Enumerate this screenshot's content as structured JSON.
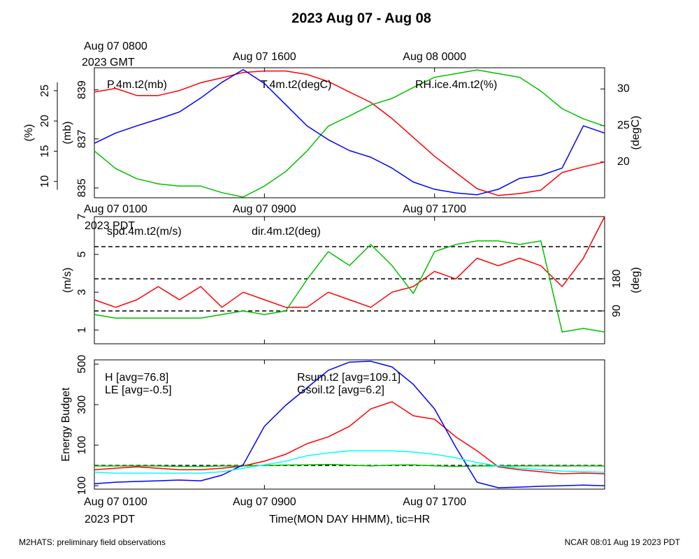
{
  "title": "2023 Aug 07 - Aug 08",
  "x_label": "Time(MON DAY HHMM), tic=HR",
  "footer_left": "M2HATS: preliminary field observations",
  "footer_right": "NCAR 08:01 Aug 19 2023 PDT",
  "chart_data": [
    {
      "type": "line",
      "x": [
        0,
        1,
        2,
        3,
        4,
        5,
        6,
        7,
        8,
        9,
        10,
        11,
        12,
        13,
        14,
        15,
        16,
        17,
        18,
        19,
        20,
        21,
        22,
        23,
        24
      ],
      "xlim": [
        0,
        24
      ],
      "xticks": [
        {
          "value": 0,
          "label": "Aug 07 0800"
        },
        {
          "value": 8,
          "label": "Aug 07 1600"
        },
        {
          "value": 16,
          "label": "Aug 08 0000"
        }
      ],
      "xtick_note": "2023 GMT",
      "xtick_labels_at": "top",
      "ylabel": "(mb)",
      "ylim": [
        834.6,
        839.9
      ],
      "yticks": [
        835,
        837,
        839
      ],
      "y2label": "(degC)",
      "y2lim": [
        15.1,
        32.9
      ],
      "y2ticks": [
        20,
        25,
        30
      ],
      "y3label": "(%)",
      "y3lim": [
        7.3,
        28.8
      ],
      "y3ticks": [
        10,
        15,
        20,
        25
      ],
      "series": [
        {
          "name": "P.4m.t2(mb)",
          "color": "#ff0000",
          "axis": "y",
          "values": [
            838.91,
            839.06,
            838.77,
            838.77,
            838.97,
            839.29,
            839.49,
            839.71,
            839.77,
            839.77,
            839.63,
            839.34,
            838.91,
            838.49,
            837.83,
            837.06,
            836.29,
            835.63,
            834.97,
            834.69,
            834.77,
            834.91,
            835.63,
            835.86,
            836.06
          ]
        },
        {
          "name": "T.4m.t2(degC)",
          "color": "#00c000",
          "axis": "y2",
          "values": [
            21.5,
            19.1,
            17.7,
            17.0,
            16.7,
            16.7,
            15.8,
            15.2,
            16.7,
            18.7,
            21.5,
            24.9,
            26.3,
            27.8,
            28.7,
            30.2,
            31.6,
            32.1,
            32.6,
            32.1,
            31.6,
            29.7,
            27.3,
            25.9,
            24.9
          ]
        },
        {
          "name": "RH.ice.4m.t2(%)",
          "color": "#0000ff",
          "axis": "y3",
          "values": [
            16.3,
            18.0,
            19.2,
            20.3,
            21.5,
            23.8,
            26.4,
            28.5,
            26.2,
            22.7,
            19.2,
            16.9,
            15.1,
            14.0,
            12.2,
            9.9,
            8.7,
            8.1,
            7.8,
            8.7,
            10.5,
            11.0,
            12.2,
            19.2,
            18.0
          ]
        }
      ]
    },
    {
      "type": "line",
      "x": [
        0,
        1,
        2,
        3,
        4,
        5,
        6,
        7,
        8,
        9,
        10,
        11,
        12,
        13,
        14,
        15,
        16,
        17,
        18,
        19,
        20,
        21,
        22,
        23,
        24
      ],
      "xlim": [
        0,
        24
      ],
      "xticks": [
        {
          "value": 0,
          "label": "Aug 07 0100"
        },
        {
          "value": 8,
          "label": "Aug 07 0900"
        },
        {
          "value": 16,
          "label": "Aug 07 1700"
        }
      ],
      "xtick_note": "2023 PDT",
      "xtick_labels_at": "top",
      "ylabel": "(m/s)",
      "ylim": [
        0.27,
        7.0
      ],
      "yticks": [
        1,
        3,
        5,
        7
      ],
      "y2label": "(deg)",
      "y2lim": [
        -2,
        354
      ],
      "y2ticks": [
        90,
        180
      ],
      "hlines": [
        90,
        180,
        270
      ],
      "hlines_axis": "y2",
      "series": [
        {
          "name": "spd.4m.t2(m/s)",
          "color": "#ff0000",
          "axis": "y",
          "values": [
            2.6,
            2.2,
            2.6,
            3.3,
            2.6,
            3.3,
            2.2,
            3.0,
            2.6,
            2.2,
            2.2,
            3.0,
            2.6,
            2.2,
            3.0,
            3.3,
            4.1,
            3.7,
            4.8,
            4.4,
            4.8,
            4.4,
            3.3,
            4.8,
            7.0
          ]
        },
        {
          "name": "dir.4m.t2(deg)",
          "color": "#00c000",
          "axis": "y2",
          "values": [
            80,
            70,
            70,
            70,
            70,
            70,
            80,
            90,
            80,
            90,
            178,
            256,
            217,
            276,
            217,
            139,
            256,
            276,
            286,
            286,
            276,
            286,
            31,
            41,
            31
          ]
        }
      ]
    },
    {
      "type": "line",
      "x": [
        0,
        1,
        2,
        3,
        4,
        5,
        6,
        7,
        8,
        9,
        10,
        11,
        12,
        13,
        14,
        15,
        16,
        17,
        18,
        19,
        20,
        21,
        22,
        23,
        24
      ],
      "xlim": [
        0,
        24
      ],
      "xticks": [
        {
          "value": 0,
          "label": "Aug 07 0100"
        },
        {
          "value": 8,
          "label": "Aug 07 0900"
        },
        {
          "value": 16,
          "label": "Aug 07 1700"
        }
      ],
      "xtick_note": "2023 PDT",
      "xtick_labels_at": "bottom",
      "ylabel": "Energy Budget",
      "ylim": [
        -117,
        521
      ],
      "yticks": [
        {
          "value": -100,
          "label": "100"
        },
        100,
        300,
        500
      ],
      "hlines": [
        0
      ],
      "hlines_axis": "y",
      "series": [
        {
          "name": "H [avg=76.8]",
          "color": "#ff0000",
          "axis": "y",
          "values": [
            -21,
            -14,
            -7,
            -14,
            -21,
            -21,
            -14,
            -3,
            21,
            55,
            107,
            141,
            193,
            279,
            314,
            245,
            228,
            141,
            72,
            -7,
            -21,
            -31,
            -41,
            -38,
            -41
          ]
        },
        {
          "name": "LE [avg=-0.5]",
          "color": "#00c000",
          "axis": "y",
          "values": [
            -3,
            -3,
            -2,
            -3,
            -5,
            -5,
            -3,
            -2,
            0,
            2,
            3,
            5,
            2,
            -3,
            2,
            3,
            -2,
            -5,
            -3,
            -2,
            -3,
            -2,
            -3,
            -2,
            -3
          ]
        },
        {
          "name": "Rsum.t2 [avg=109.1]",
          "color": "#0000ff",
          "axis": "y",
          "values": [
            -90,
            -83,
            -79,
            -76,
            -72,
            -76,
            -48,
            3,
            193,
            297,
            383,
            469,
            510,
            514,
            486,
            400,
            279,
            90,
            -83,
            -110,
            -107,
            -103,
            -100,
            -97,
            -100
          ]
        },
        {
          "name": "Gsoil.t2 [avg=6.2]",
          "color": "#00ffff",
          "axis": "y",
          "values": [
            -34,
            -38,
            -38,
            -38,
            -38,
            -38,
            -31,
            -14,
            3,
            21,
            48,
            62,
            72,
            72,
            72,
            66,
            55,
            38,
            14,
            -3,
            -14,
            -21,
            -28,
            -31,
            -34
          ]
        }
      ]
    }
  ]
}
